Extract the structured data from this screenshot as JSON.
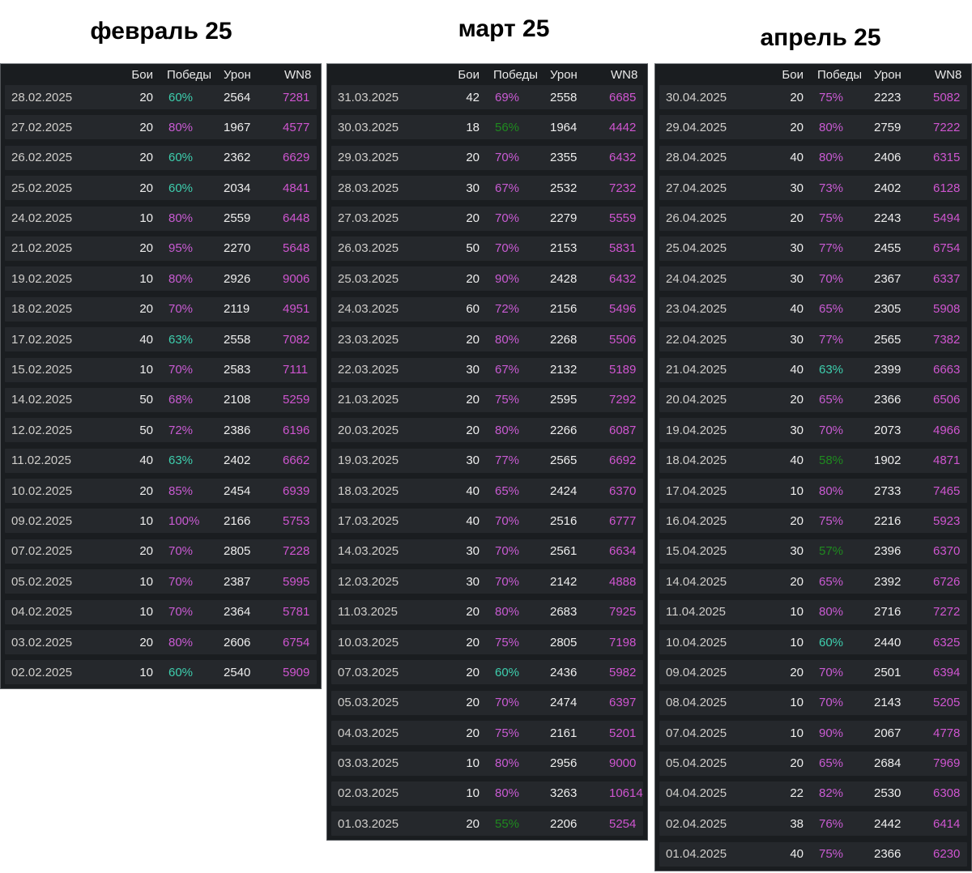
{
  "palette": {
    "table_bg": "#1a1d20",
    "row_bg": "#25282c",
    "header_text": "#e8e8e8",
    "date_text": "#cfcdca",
    "number_text": "#eeeeee",
    "purple": "#c95bd3",
    "wn8_purple": "#cf55d0",
    "teal": "#3ecfae",
    "green": "#1f8a1f"
  },
  "columns": {
    "battles": "Бои",
    "wins": "Победы",
    "damage": "Урон",
    "wn8": "WN8"
  },
  "tables": [
    {
      "id": "february",
      "title": "февраль 25",
      "rows": [
        {
          "date": "28.02.2025",
          "battles": "20",
          "wins": "60%",
          "wins_color": "teal",
          "damage": "2564",
          "wn8": "7281"
        },
        {
          "date": "27.02.2025",
          "battles": "20",
          "wins": "80%",
          "wins_color": "purple",
          "damage": "1967",
          "wn8": "4577"
        },
        {
          "date": "26.02.2025",
          "battles": "20",
          "wins": "60%",
          "wins_color": "teal",
          "damage": "2362",
          "wn8": "6629"
        },
        {
          "date": "25.02.2025",
          "battles": "20",
          "wins": "60%",
          "wins_color": "teal",
          "damage": "2034",
          "wn8": "4841"
        },
        {
          "date": "24.02.2025",
          "battles": "10",
          "wins": "80%",
          "wins_color": "purple",
          "damage": "2559",
          "wn8": "6448"
        },
        {
          "date": "21.02.2025",
          "battles": "20",
          "wins": "95%",
          "wins_color": "purple",
          "damage": "2270",
          "wn8": "5648"
        },
        {
          "date": "19.02.2025",
          "battles": "10",
          "wins": "80%",
          "wins_color": "purple",
          "damage": "2926",
          "wn8": "9006"
        },
        {
          "date": "18.02.2025",
          "battles": "20",
          "wins": "70%",
          "wins_color": "purple",
          "damage": "2119",
          "wn8": "4951"
        },
        {
          "date": "17.02.2025",
          "battles": "40",
          "wins": "63%",
          "wins_color": "teal",
          "damage": "2558",
          "wn8": "7082"
        },
        {
          "date": "15.02.2025",
          "battles": "10",
          "wins": "70%",
          "wins_color": "purple",
          "damage": "2583",
          "wn8": "7111"
        },
        {
          "date": "14.02.2025",
          "battles": "50",
          "wins": "68%",
          "wins_color": "purple",
          "damage": "2108",
          "wn8": "5259"
        },
        {
          "date": "12.02.2025",
          "battles": "50",
          "wins": "72%",
          "wins_color": "purple",
          "damage": "2386",
          "wn8": "6196"
        },
        {
          "date": "11.02.2025",
          "battles": "40",
          "wins": "63%",
          "wins_color": "teal",
          "damage": "2402",
          "wn8": "6662"
        },
        {
          "date": "10.02.2025",
          "battles": "20",
          "wins": "85%",
          "wins_color": "purple",
          "damage": "2454",
          "wn8": "6939"
        },
        {
          "date": "09.02.2025",
          "battles": "10",
          "wins": "100%",
          "wins_color": "purple",
          "damage": "2166",
          "wn8": "5753"
        },
        {
          "date": "07.02.2025",
          "battles": "20",
          "wins": "70%",
          "wins_color": "purple",
          "damage": "2805",
          "wn8": "7228"
        },
        {
          "date": "05.02.2025",
          "battles": "10",
          "wins": "70%",
          "wins_color": "purple",
          "damage": "2387",
          "wn8": "5995"
        },
        {
          "date": "04.02.2025",
          "battles": "10",
          "wins": "70%",
          "wins_color": "purple",
          "damage": "2364",
          "wn8": "5781"
        },
        {
          "date": "03.02.2025",
          "battles": "20",
          "wins": "80%",
          "wins_color": "purple",
          "damage": "2606",
          "wn8": "6754"
        },
        {
          "date": "02.02.2025",
          "battles": "10",
          "wins": "60%",
          "wins_color": "teal",
          "damage": "2540",
          "wn8": "5909"
        }
      ]
    },
    {
      "id": "march",
      "title": "март 25",
      "rows": [
        {
          "date": "31.03.2025",
          "battles": "42",
          "wins": "69%",
          "wins_color": "purple",
          "damage": "2558",
          "wn8": "6685"
        },
        {
          "date": "30.03.2025",
          "battles": "18",
          "wins": "56%",
          "wins_color": "green",
          "damage": "1964",
          "wn8": "4442"
        },
        {
          "date": "29.03.2025",
          "battles": "20",
          "wins": "70%",
          "wins_color": "purple",
          "damage": "2355",
          "wn8": "6432"
        },
        {
          "date": "28.03.2025",
          "battles": "30",
          "wins": "67%",
          "wins_color": "purple",
          "damage": "2532",
          "wn8": "7232"
        },
        {
          "date": "27.03.2025",
          "battles": "20",
          "wins": "70%",
          "wins_color": "purple",
          "damage": "2279",
          "wn8": "5559"
        },
        {
          "date": "26.03.2025",
          "battles": "50",
          "wins": "70%",
          "wins_color": "purple",
          "damage": "2153",
          "wn8": "5831"
        },
        {
          "date": "25.03.2025",
          "battles": "20",
          "wins": "90%",
          "wins_color": "purple",
          "damage": "2428",
          "wn8": "6432"
        },
        {
          "date": "24.03.2025",
          "battles": "60",
          "wins": "72%",
          "wins_color": "purple",
          "damage": "2156",
          "wn8": "5496"
        },
        {
          "date": "23.03.2025",
          "battles": "20",
          "wins": "80%",
          "wins_color": "purple",
          "damage": "2268",
          "wn8": "5506"
        },
        {
          "date": "22.03.2025",
          "battles": "30",
          "wins": "67%",
          "wins_color": "purple",
          "damage": "2132",
          "wn8": "5189"
        },
        {
          "date": "21.03.2025",
          "battles": "20",
          "wins": "75%",
          "wins_color": "purple",
          "damage": "2595",
          "wn8": "7292"
        },
        {
          "date": "20.03.2025",
          "battles": "20",
          "wins": "80%",
          "wins_color": "purple",
          "damage": "2266",
          "wn8": "6087"
        },
        {
          "date": "19.03.2025",
          "battles": "30",
          "wins": "77%",
          "wins_color": "purple",
          "damage": "2565",
          "wn8": "6692"
        },
        {
          "date": "18.03.2025",
          "battles": "40",
          "wins": "65%",
          "wins_color": "purple",
          "damage": "2424",
          "wn8": "6370"
        },
        {
          "date": "17.03.2025",
          "battles": "40",
          "wins": "70%",
          "wins_color": "purple",
          "damage": "2516",
          "wn8": "6777"
        },
        {
          "date": "14.03.2025",
          "battles": "30",
          "wins": "70%",
          "wins_color": "purple",
          "damage": "2561",
          "wn8": "6634"
        },
        {
          "date": "12.03.2025",
          "battles": "30",
          "wins": "70%",
          "wins_color": "purple",
          "damage": "2142",
          "wn8": "4888"
        },
        {
          "date": "11.03.2025",
          "battles": "20",
          "wins": "80%",
          "wins_color": "purple",
          "damage": "2683",
          "wn8": "7925"
        },
        {
          "date": "10.03.2025",
          "battles": "20",
          "wins": "75%",
          "wins_color": "purple",
          "damage": "2805",
          "wn8": "7198"
        },
        {
          "date": "07.03.2025",
          "battles": "20",
          "wins": "60%",
          "wins_color": "teal",
          "damage": "2436",
          "wn8": "5982"
        },
        {
          "date": "05.03.2025",
          "battles": "20",
          "wins": "70%",
          "wins_color": "purple",
          "damage": "2474",
          "wn8": "6397"
        },
        {
          "date": "04.03.2025",
          "battles": "20",
          "wins": "75%",
          "wins_color": "purple",
          "damage": "2161",
          "wn8": "5201"
        },
        {
          "date": "03.03.2025",
          "battles": "10",
          "wins": "80%",
          "wins_color": "purple",
          "damage": "2956",
          "wn8": "9000"
        },
        {
          "date": "02.03.2025",
          "battles": "10",
          "wins": "80%",
          "wins_color": "purple",
          "damage": "3263",
          "wn8": "10614"
        },
        {
          "date": "01.03.2025",
          "battles": "20",
          "wins": "55%",
          "wins_color": "green",
          "damage": "2206",
          "wn8": "5254"
        }
      ]
    },
    {
      "id": "april",
      "title": "апрель 25",
      "rows": [
        {
          "date": "30.04.2025",
          "battles": "20",
          "wins": "75%",
          "wins_color": "purple",
          "damage": "2223",
          "wn8": "5082"
        },
        {
          "date": "29.04.2025",
          "battles": "20",
          "wins": "80%",
          "wins_color": "purple",
          "damage": "2759",
          "wn8": "7222"
        },
        {
          "date": "28.04.2025",
          "battles": "40",
          "wins": "80%",
          "wins_color": "purple",
          "damage": "2406",
          "wn8": "6315"
        },
        {
          "date": "27.04.2025",
          "battles": "30",
          "wins": "73%",
          "wins_color": "purple",
          "damage": "2402",
          "wn8": "6128"
        },
        {
          "date": "26.04.2025",
          "battles": "20",
          "wins": "75%",
          "wins_color": "purple",
          "damage": "2243",
          "wn8": "5494"
        },
        {
          "date": "25.04.2025",
          "battles": "30",
          "wins": "77%",
          "wins_color": "purple",
          "damage": "2455",
          "wn8": "6754"
        },
        {
          "date": "24.04.2025",
          "battles": "30",
          "wins": "70%",
          "wins_color": "purple",
          "damage": "2367",
          "wn8": "6337"
        },
        {
          "date": "23.04.2025",
          "battles": "40",
          "wins": "65%",
          "wins_color": "purple",
          "damage": "2305",
          "wn8": "5908"
        },
        {
          "date": "22.04.2025",
          "battles": "30",
          "wins": "77%",
          "wins_color": "purple",
          "damage": "2565",
          "wn8": "7382"
        },
        {
          "date": "21.04.2025",
          "battles": "40",
          "wins": "63%",
          "wins_color": "teal",
          "damage": "2399",
          "wn8": "6663"
        },
        {
          "date": "20.04.2025",
          "battles": "20",
          "wins": "65%",
          "wins_color": "purple",
          "damage": "2366",
          "wn8": "6506"
        },
        {
          "date": "19.04.2025",
          "battles": "30",
          "wins": "70%",
          "wins_color": "purple",
          "damage": "2073",
          "wn8": "4966"
        },
        {
          "date": "18.04.2025",
          "battles": "40",
          "wins": "58%",
          "wins_color": "green",
          "damage": "1902",
          "wn8": "4871"
        },
        {
          "date": "17.04.2025",
          "battles": "10",
          "wins": "80%",
          "wins_color": "purple",
          "damage": "2733",
          "wn8": "7465"
        },
        {
          "date": "16.04.2025",
          "battles": "20",
          "wins": "75%",
          "wins_color": "purple",
          "damage": "2216",
          "wn8": "5923"
        },
        {
          "date": "15.04.2025",
          "battles": "30",
          "wins": "57%",
          "wins_color": "green",
          "damage": "2396",
          "wn8": "6370"
        },
        {
          "date": "14.04.2025",
          "battles": "20",
          "wins": "65%",
          "wins_color": "purple",
          "damage": "2392",
          "wn8": "6726"
        },
        {
          "date": "11.04.2025",
          "battles": "10",
          "wins": "80%",
          "wins_color": "purple",
          "damage": "2716",
          "wn8": "7272"
        },
        {
          "date": "10.04.2025",
          "battles": "10",
          "wins": "60%",
          "wins_color": "teal",
          "damage": "2440",
          "wn8": "6325"
        },
        {
          "date": "09.04.2025",
          "battles": "20",
          "wins": "70%",
          "wins_color": "purple",
          "damage": "2501",
          "wn8": "6394"
        },
        {
          "date": "08.04.2025",
          "battles": "10",
          "wins": "70%",
          "wins_color": "purple",
          "damage": "2143",
          "wn8": "5205"
        },
        {
          "date": "07.04.2025",
          "battles": "10",
          "wins": "90%",
          "wins_color": "purple",
          "damage": "2067",
          "wn8": "4778"
        },
        {
          "date": "05.04.2025",
          "battles": "20",
          "wins": "65%",
          "wins_color": "purple",
          "damage": "2684",
          "wn8": "7969"
        },
        {
          "date": "04.04.2025",
          "battles": "22",
          "wins": "82%",
          "wins_color": "purple",
          "damage": "2530",
          "wn8": "6308"
        },
        {
          "date": "02.04.2025",
          "battles": "38",
          "wins": "76%",
          "wins_color": "purple",
          "damage": "2442",
          "wn8": "6414"
        },
        {
          "date": "01.04.2025",
          "battles": "40",
          "wins": "75%",
          "wins_color": "purple",
          "damage": "2366",
          "wn8": "6230"
        }
      ]
    }
  ]
}
